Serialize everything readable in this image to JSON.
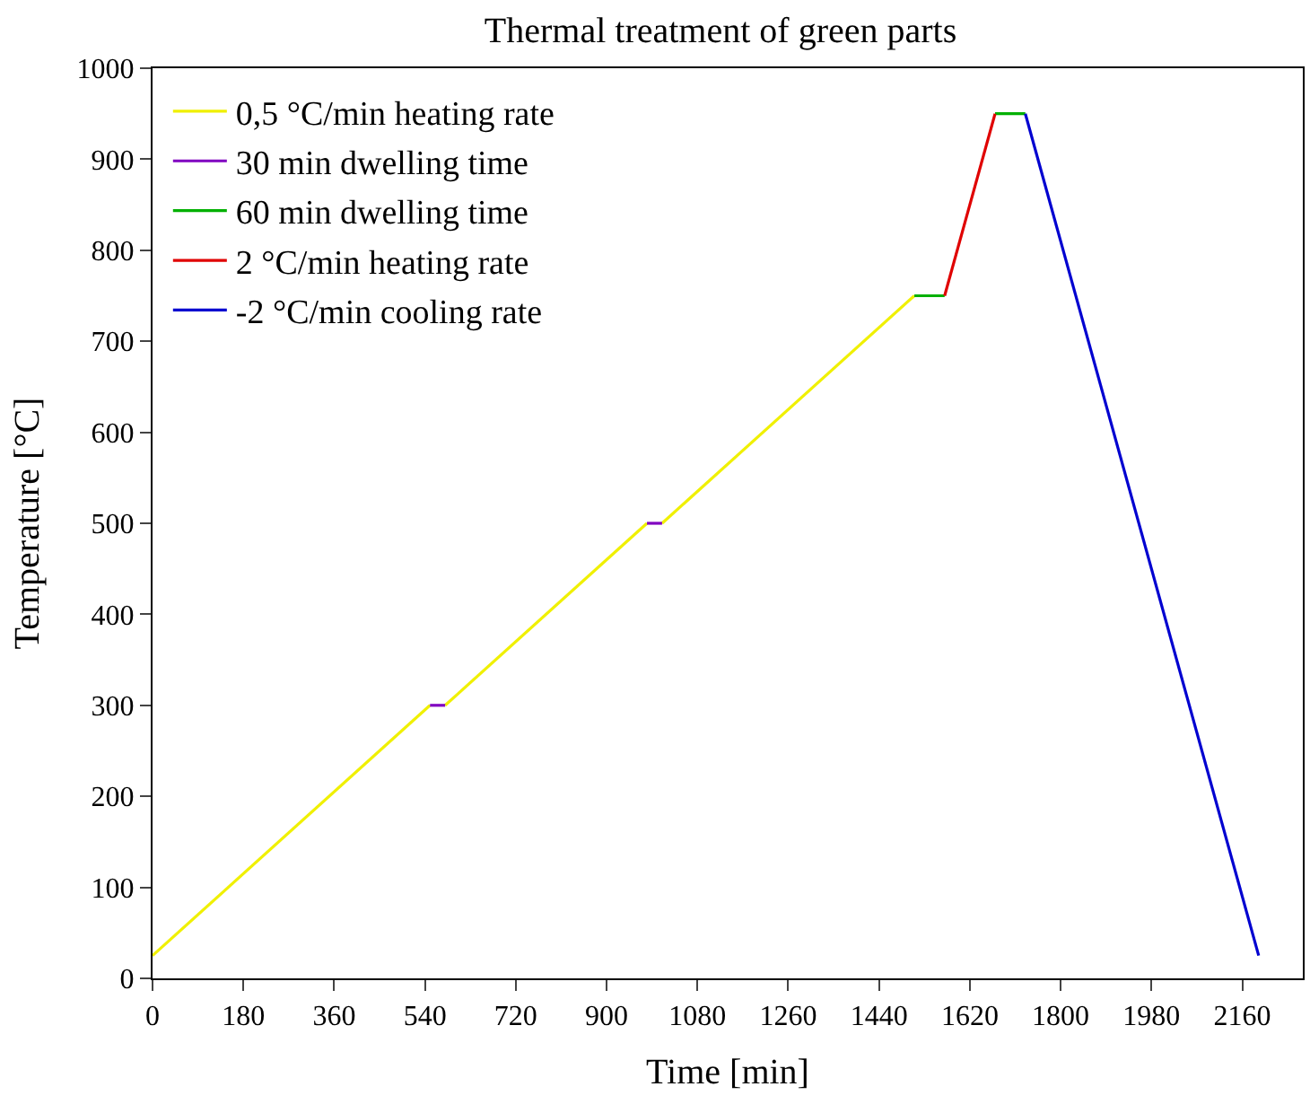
{
  "chart_data": {
    "type": "line",
    "title": "Thermal treatment of green parts",
    "xlabel": "Time [min]",
    "ylabel": "Temperature [°C]",
    "xlim": [
      0,
      2280
    ],
    "xticks": [
      0,
      180,
      360,
      540,
      720,
      900,
      1080,
      1260,
      1440,
      1620,
      1800,
      1980,
      2160
    ],
    "ylim": [
      0,
      1000
    ],
    "yticks": [
      0,
      100,
      200,
      300,
      400,
      500,
      600,
      700,
      800,
      900,
      1000
    ],
    "legend": "top left",
    "marker": "none",
    "line_style": "solid",
    "series": [
      {
        "name": "0,5 °C/min heating rate",
        "color": "#f0f000",
        "x": [
          0,
          550,
          null,
          580,
          980,
          null,
          1010,
          1510
        ],
        "values": [
          25,
          300,
          null,
          300,
          500,
          null,
          500,
          750
        ]
      },
      {
        "name": "30 min dwelling time",
        "color": "#8000c0",
        "x": [
          550,
          580,
          null,
          980,
          1010
        ],
        "values": [
          300,
          300,
          null,
          500,
          500
        ]
      },
      {
        "name": "60 min dwelling time",
        "color": "#00b000",
        "x": [
          1510,
          1570,
          null,
          1670,
          1730
        ],
        "values": [
          750,
          750,
          null,
          950,
          950
        ]
      },
      {
        "name": "2 °C/min heating rate",
        "color": "#e00000",
        "x": [
          1570,
          1670
        ],
        "values": [
          750,
          950
        ]
      },
      {
        "name": "-2 °C/min cooling rate",
        "color": "#0000d0",
        "x": [
          1730,
          2192.5
        ],
        "values": [
          950,
          25
        ]
      }
    ]
  }
}
